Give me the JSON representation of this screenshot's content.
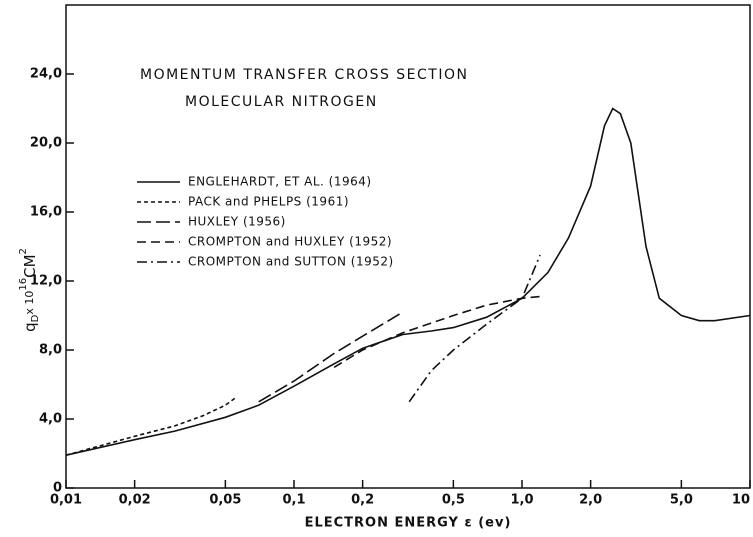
{
  "chart_data": {
    "type": "line",
    "title": "MOMENTUM TRANSFER CROSS SECTION",
    "subtitle": "MOLECULAR NITROGEN",
    "xlabel": "ELECTRON ENERGY ε (ev)",
    "ylabel": {
      "symbol": "q",
      "subscript": "D",
      "factor": "x 10",
      "exponent": "16",
      "unit": "CM",
      "unit_exponent": "2"
    },
    "xscale": "log",
    "xlim": [
      0.01,
      10
    ],
    "ylim": [
      0,
      28
    ],
    "xticks": [
      {
        "value": 0.01,
        "label": "0,01"
      },
      {
        "value": 0.02,
        "label": "0,02"
      },
      {
        "value": 0.05,
        "label": "0,05"
      },
      {
        "value": 0.1,
        "label": "0,1"
      },
      {
        "value": 0.2,
        "label": "0,2"
      },
      {
        "value": 0.5,
        "label": "0,5"
      },
      {
        "value": 1,
        "label": "1,0"
      },
      {
        "value": 2,
        "label": "2,0"
      },
      {
        "value": 5,
        "label": "5,0"
      },
      10
    ],
    "yticks": [
      0,
      {
        "value": 4,
        "label": "4,0"
      },
      {
        "value": 8,
        "label": "8,0"
      },
      {
        "value": 12,
        "label": "12,0"
      },
      {
        "value": 16,
        "label": "16,0"
      },
      {
        "value": 20,
        "label": "20,0"
      },
      {
        "value": 24,
        "label": "24,0"
      }
    ],
    "series": [
      {
        "name": "ENGLEHARDT, ET AL. (1964)",
        "color": "#111",
        "linestyle": "solid",
        "x": [
          0.01,
          0.02,
          0.03,
          0.05,
          0.07,
          0.1,
          0.15,
          0.2,
          0.3,
          0.4,
          0.5,
          0.7,
          1.0,
          1.3,
          1.6,
          2.0,
          2.3,
          2.5,
          2.7,
          3.0,
          3.5,
          4.0,
          5.0,
          6.0,
          7.0,
          10
        ],
        "values": [
          1.9,
          2.8,
          3.3,
          4.1,
          4.8,
          5.9,
          7.2,
          8.1,
          8.9,
          9.1,
          9.3,
          9.9,
          11.0,
          12.5,
          14.5,
          17.5,
          21.0,
          22.0,
          21.7,
          20,
          14,
          11,
          10.0,
          9.7,
          9.7,
          10.0
        ]
      },
      {
        "name": "PACK and PHELPS (1961)",
        "color": "#111",
        "linestyle": "dotted",
        "x": [
          0.01,
          0.02,
          0.03,
          0.04,
          0.05,
          0.055
        ],
        "values": [
          1.9,
          3.0,
          3.6,
          4.2,
          4.8,
          5.2
        ]
      },
      {
        "name": "HUXLEY (1956)",
        "color": "#111",
        "linestyle": "longdash",
        "x": [
          0.07,
          0.1,
          0.15,
          0.2,
          0.3
        ],
        "values": [
          5.0,
          6.2,
          7.8,
          8.8,
          10.2
        ]
      },
      {
        "name": "CROMPTON and HUXLEY (1952)",
        "color": "#111",
        "linestyle": "dashed",
        "x": [
          0.15,
          0.2,
          0.3,
          0.5,
          0.7,
          1.0,
          1.2
        ],
        "values": [
          7.0,
          8.0,
          9.0,
          10.0,
          10.6,
          11.0,
          11.1
        ]
      },
      {
        "name": "CROMPTON and SUTTON (1952)",
        "color": "#111",
        "linestyle": "dashdot",
        "x": [
          0.32,
          0.4,
          0.5,
          0.7,
          1.0,
          1.2
        ],
        "values": [
          5.0,
          6.8,
          8.0,
          9.5,
          11.0,
          13.5
        ]
      }
    ]
  }
}
